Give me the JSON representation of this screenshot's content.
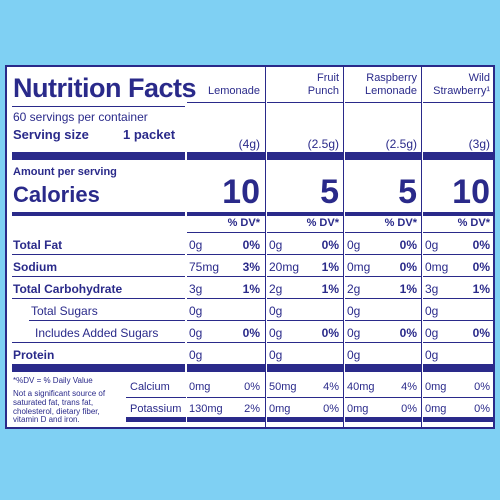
{
  "label": {
    "title": "Nutrition Facts",
    "servings": "60 servings per container",
    "serving_size_label": "Serving size",
    "serving_size_value": "1 packet",
    "amount_per_serving": "Amount per serving",
    "calories_label": "Calories",
    "dv_header": "% DV*",
    "footnote_dv": "*%DV = % Daily Value",
    "footnote_not_sig": "Not a significant source of saturated fat, trans fat, cholesterol, dietary fiber, vitamin D and iron."
  },
  "flavors": [
    {
      "name_line1": "",
      "name_line2": "Lemonade",
      "serving": "(4g)",
      "calories": "10"
    },
    {
      "name_line1": "Fruit",
      "name_line2": "Punch",
      "serving": "(2.5g)",
      "calories": "5"
    },
    {
      "name_line1": "Raspberry",
      "name_line2": "Lemonade",
      "serving": "(2.5g)",
      "calories": "5"
    },
    {
      "name_line1": "Wild",
      "name_line2": "Strawberry¹",
      "serving": "(3g)",
      "calories": "10"
    }
  ],
  "nutrients": [
    {
      "label": "Total Fat",
      "bold": true,
      "values": [
        [
          "0g",
          "0%"
        ],
        [
          "0g",
          "0%"
        ],
        [
          "0g",
          "0%"
        ],
        [
          "0g",
          "0%"
        ]
      ]
    },
    {
      "label": "Sodium",
      "bold": true,
      "values": [
        [
          "75mg",
          "3%"
        ],
        [
          "20mg",
          "1%"
        ],
        [
          "0mg",
          "0%"
        ],
        [
          "0mg",
          "0%"
        ]
      ]
    },
    {
      "label": "Total Carbohydrate",
      "bold": true,
      "values": [
        [
          "3g",
          "1%"
        ],
        [
          "2g",
          "1%"
        ],
        [
          "2g",
          "1%"
        ],
        [
          "3g",
          "1%"
        ]
      ]
    },
    {
      "label": "Total Sugars",
      "bold": false,
      "values": [
        [
          "0g",
          ""
        ],
        [
          "0g",
          ""
        ],
        [
          "0g",
          ""
        ],
        [
          "0g",
          ""
        ]
      ]
    },
    {
      "label": "Includes Added Sugars",
      "bold": false,
      "values": [
        [
          "0g",
          "0%"
        ],
        [
          "0g",
          "0%"
        ],
        [
          "0g",
          "0%"
        ],
        [
          "0g",
          "0%"
        ]
      ]
    },
    {
      "label": "Protein",
      "bold": true,
      "values": [
        [
          "0g",
          ""
        ],
        [
          "0g",
          ""
        ],
        [
          "0g",
          ""
        ],
        [
          "0g",
          ""
        ]
      ]
    }
  ],
  "minerals": [
    {
      "label": "Calcium",
      "values": [
        [
          "0mg",
          "0%"
        ],
        [
          "50mg",
          "4%"
        ],
        [
          "40mg",
          "4%"
        ],
        [
          "0mg",
          "0%"
        ]
      ]
    },
    {
      "label": "Potassium",
      "values": [
        [
          "130mg",
          "2%"
        ],
        [
          "0mg",
          "0%"
        ],
        [
          "0mg",
          "0%"
        ],
        [
          "0mg",
          "0%"
        ]
      ]
    }
  ]
}
